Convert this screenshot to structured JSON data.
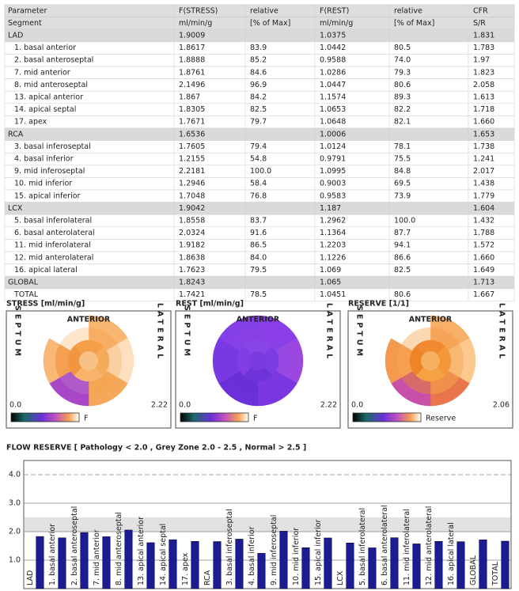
{
  "table": {
    "header": [
      [
        "Parameter",
        "F(STRESS)",
        "relative",
        "F(REST)",
        "relative",
        "CFR"
      ],
      [
        "Segment",
        "ml/min/g",
        "[% of Max]",
        "ml/min/g",
        "[% of Max]",
        "S/R"
      ]
    ],
    "rows": [
      {
        "group": true,
        "cells": [
          "LAD",
          "1.9009",
          null,
          "1.0375",
          null,
          "1.831"
        ]
      },
      {
        "cells": [
          "1. basal anterior",
          "1.8617",
          "83.9",
          "1.0442",
          "80.5",
          "1.783"
        ]
      },
      {
        "cells": [
          "2. basal anteroseptal",
          "1.8888",
          "85.2",
          "0.9588",
          "74.0",
          "1.97"
        ]
      },
      {
        "cells": [
          "7. mid anterior",
          "1.8761",
          "84.6",
          "1.0286",
          "79.3",
          "1.823"
        ]
      },
      {
        "cells": [
          "8. mid anteroseptal",
          "2.1496",
          "96.9",
          "1.0447",
          "80.6",
          "2.058"
        ]
      },
      {
        "cells": [
          "13. apical anterior",
          "1.867",
          "84.2",
          "1.1574",
          "89.3",
          "1.613"
        ]
      },
      {
        "cells": [
          "14. apical septal",
          "1.8305",
          "82.5",
          "1.0653",
          "82.2",
          "1.718"
        ]
      },
      {
        "cells": [
          "17. apex",
          "1.7671",
          "79.7",
          "1.0648",
          "82.1",
          "1.660"
        ]
      },
      {
        "group": true,
        "cells": [
          "RCA",
          "1.6536",
          null,
          "1.0006",
          null,
          "1.653"
        ]
      },
      {
        "cells": [
          "3. basal inferoseptal",
          "1.7605",
          "79.4",
          "1.0124",
          "78.1",
          "1.738"
        ]
      },
      {
        "cells": [
          "4. basal inferior",
          "1.2155",
          "54.8",
          "0.9791",
          "75.5",
          "1.241"
        ]
      },
      {
        "cells": [
          "9. mid inferoseptal",
          "2.2181",
          "100.0",
          "1.0995",
          "84.8",
          "2.017"
        ]
      },
      {
        "cells": [
          "10. mid inferior",
          "1.2946",
          "58.4",
          "0.9003",
          "69.5",
          "1.438"
        ]
      },
      {
        "cells": [
          "15. apical inferior",
          "1.7048",
          "76.8",
          "0.9583",
          "73.9",
          "1.779"
        ]
      },
      {
        "group": true,
        "cells": [
          "LCX",
          "1.9042",
          null,
          "1.187",
          null,
          "1.604"
        ]
      },
      {
        "cells": [
          "5. basal inferolateral",
          "1.8558",
          "83.7",
          "1.2962",
          "100.0",
          "1.432"
        ]
      },
      {
        "cells": [
          "6. basal anterolateral",
          "2.0324",
          "91.6",
          "1.1364",
          "87.7",
          "1.788"
        ]
      },
      {
        "cells": [
          "11. mid inferolateral",
          "1.9182",
          "86.5",
          "1.2203",
          "94.1",
          "1.572"
        ]
      },
      {
        "cells": [
          "12. mid anterolateral",
          "1.8638",
          "84.0",
          "1.1226",
          "86.6",
          "1.660"
        ]
      },
      {
        "cells": [
          "16. apical lateral",
          "1.7623",
          "79.5",
          "1.069",
          "82.5",
          "1.649"
        ]
      },
      {
        "group": true,
        "cells": [
          "GLOBAL",
          "1.8243",
          null,
          "1.065",
          null,
          "1.713"
        ]
      },
      {
        "cells": [
          "TOTAL",
          "1.7421",
          "78.5",
          "1.0451",
          "80.6",
          "1.667"
        ]
      }
    ]
  },
  "polar_maps": [
    {
      "title": "STRESS [ml/min/g]",
      "top": "ANTERIOR",
      "left": "SEPTUM",
      "right": "LATERAL",
      "min": "0.0",
      "max": "2.22",
      "scale_label": "F",
      "outer": [
        "#f8b670",
        "#fde0c0",
        "#f6a85a",
        "#a848c8",
        "#f9b877",
        "#ffffff"
      ],
      "middle": [
        "#f7ad62",
        "#fbd0a0",
        "#f6a552",
        "#b05ac8",
        "#f5a050",
        "#fde6cc"
      ],
      "inner": [
        "#f4a048",
        "#f6ab5c",
        "#f8b46c",
        "#f19540"
      ],
      "apex": "#f8c287"
    },
    {
      "title": "REST [ml/min/g]",
      "top": "ANTERIOR",
      "left": "SEPTUM",
      "right": "LATERAL",
      "min": "0.0",
      "max": "2.22",
      "scale_label": "F",
      "outer": [
        "#8a3ee8",
        "#9a48e0",
        "#7a36e0",
        "#6c30d8",
        "#7a38e4",
        "#8440e6"
      ],
      "middle": [
        "#8a40e6",
        "#9648e2",
        "#7c38e0",
        "#6a30d6",
        "#7838e2",
        "#8640e4"
      ],
      "inner": [
        "#8844e6",
        "#7c3ce2",
        "#6e34da",
        "#823ee4"
      ],
      "apex": "#7a3ae0"
    },
    {
      "title": "RESERVE [1/1]",
      "top": "ANTERIOR",
      "left": "SEPTUM",
      "right": "LATERAL",
      "min": "0.0",
      "max": "2.06",
      "scale_label": "Reserve",
      "outer": [
        "#f7b066",
        "#fbc98e",
        "#e8764a",
        "#c850a8",
        "#f49a4e",
        "#ffffff"
      ],
      "middle": [
        "#f6a458",
        "#f8b870",
        "#f0904a",
        "#d86a6a",
        "#f5a050",
        "#fcd8b0"
      ],
      "inner": [
        "#f08a30",
        "#f29838",
        "#f4a244",
        "#ee8428"
      ],
      "apex": "#f7b060"
    }
  ],
  "chart_data": {
    "type": "bar",
    "title": "FLOW RESERVE [ Pathology < 2.0 , Grey Zone 2.0 - 2.5 , Normal > 2.5 ]",
    "categories": [
      "LAD",
      "1. basal anterior",
      "2. basal anteroseptal",
      "7. mid anterior",
      "8. mid anteroseptal",
      "13. apical anterior",
      "14. apical septal",
      "17. apex",
      "RCA",
      "3. basal inferoseptal",
      "4. basal inferior",
      "9. mid inferoseptal",
      "10. mid inferior",
      "15. apical inferior",
      "LCX",
      "5. basal inferolateral",
      "6. basal anterolateral",
      "11. mid inferolateral",
      "12. mid anterolateral",
      "16. apical lateral",
      "GLOBAL",
      "TOTAL"
    ],
    "values": [
      1.831,
      1.783,
      1.97,
      1.823,
      2.058,
      1.613,
      1.718,
      1.66,
      1.653,
      1.738,
      1.241,
      2.017,
      1.438,
      1.779,
      1.604,
      1.432,
      1.788,
      1.572,
      1.66,
      1.649,
      1.713,
      1.667
    ],
    "color": "#1c1c90",
    "ylim": [
      0,
      4.5
    ],
    "yticks": [
      {
        "value": 1,
        "label": "1.0"
      },
      {
        "value": 2,
        "label": "2.0"
      },
      {
        "value": 3,
        "label": "3.0"
      },
      {
        "value": 4,
        "label": "4.0"
      }
    ],
    "grey_zone": [
      2.0,
      2.5
    ],
    "grid": true
  }
}
